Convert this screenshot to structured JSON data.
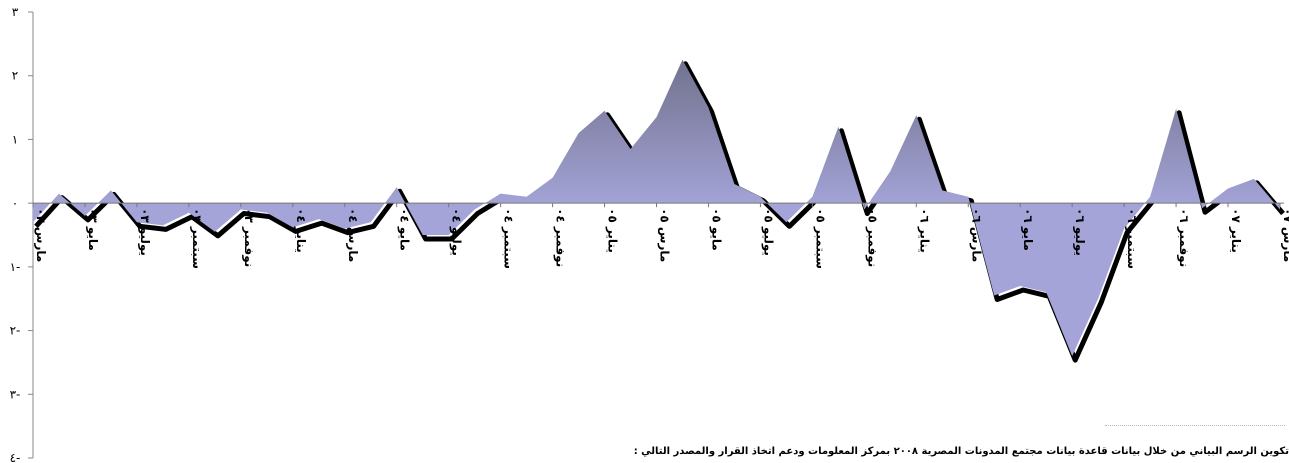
{
  "chart_data": {
    "type": "area",
    "y_tick_labels": [
      "٣",
      "٢",
      "١",
      "٠",
      "١-",
      "٢-",
      "٣-",
      "٤-"
    ],
    "y_tick_values": [
      3,
      2,
      1,
      0,
      -1,
      -2,
      -3,
      -4
    ],
    "ylim": [
      -4,
      3
    ],
    "grid": false,
    "legend": "none",
    "x_tick_labels": [
      "مارس ٠٣",
      "مايو ٠٣",
      "يوليو ٠٣",
      "سبتمبر ٠٣",
      "نوفمبر ٠٣",
      "يناير ٠٤",
      "مارس ٠٤",
      "مايو ٠٤",
      "يوليو ٠٤",
      "سبتمبر ٠٤",
      "نوفمبر ٠٤",
      "يناير ٠٥",
      "مارس ٠٥",
      "مايو ٠٥",
      "يوليو ٠٥",
      "سبتمبر ٠٥",
      "نوفمبر ٠٥",
      "يناير ٠٦",
      "مارس ٠٦",
      "مايو ٠٦",
      "يوليو ٠٦",
      "سبتمبر ٠٦",
      "نوفمبر ٠٦",
      "يناير ٠٧",
      "مارس ٠٧"
    ],
    "x_start": "2007-03",
    "x_step_months": -1,
    "values": [
      -0.1,
      0.38,
      0.23,
      -0.08,
      1.48,
      0.1,
      -0.4,
      -1.5,
      -2.4,
      -1.4,
      -1.3,
      -1.45,
      0.1,
      0.2,
      1.38,
      0.5,
      -0.1,
      1.2,
      0.1,
      -0.3,
      0.1,
      0.3,
      1.5,
      2.25,
      1.35,
      0.85,
      1.45,
      1.1,
      0.4,
      0.1,
      0.15,
      -0.1,
      -0.5,
      -0.5,
      0.25,
      -0.3,
      -0.4,
      -0.25,
      -0.38,
      -0.15,
      -0.1,
      -0.45,
      -0.15,
      -0.35,
      -0.3,
      0.2,
      -0.2,
      0.15,
      -0.3
    ],
    "area_color": "#a4a4d8",
    "area_color_peak": "#72728e",
    "shadow_color": "#000000",
    "source_note": "تكوين الرسم البياني من خلال بيانات قاعدة بيانات مجتمع المدونات المصرية ٢٠٠٨ بمركز المعلومات ودعم اتخاذ القرار والمصدر التالي :"
  }
}
